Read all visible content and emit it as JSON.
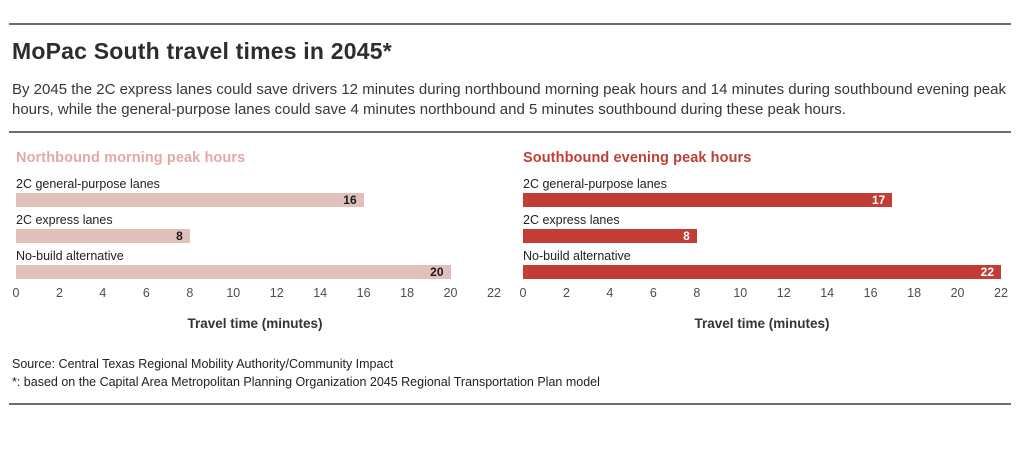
{
  "page": {
    "title": "MoPac South travel times in 2045*",
    "subtitle": "By 2045 the 2C express lanes could save drivers 12 minutes during northbound morning peak hours and 14 minutes during southbound evening peak hours, while the general-purpose lanes could save 4 minutes northbound and 5 minutes southbound during these peak hours.",
    "source_line": "Source: Central Texas Regional Mobility Authority/Community Impact",
    "footnote_line": "*: based on the Capital Area Metropolitan Planning Organization 2045 Regional Transportation Plan model"
  },
  "colors": {
    "northbound_accent": "#e3a9a4",
    "northbound_bar": "#e1bfbb",
    "southbound_accent": "#c13d35",
    "southbound_bar": "#c13d35",
    "rule_gray": "#6e6e6e"
  },
  "chart_data": [
    {
      "type": "bar",
      "orientation": "horizontal",
      "title": "Northbound morning peak hours",
      "title_color": "#e3a9a4",
      "categories": [
        "2C general-purpose lanes",
        "2C express lanes",
        "No-build alternative"
      ],
      "values": [
        16,
        8,
        20
      ],
      "xlabel": "Travel time (minutes)",
      "xlim": [
        0,
        22
      ],
      "xticks": [
        0,
        2,
        4,
        6,
        8,
        10,
        12,
        14,
        16,
        18,
        20,
        22
      ],
      "bar_color": "#e1bfbb",
      "value_label_color": "#1a1a1a",
      "grid": false,
      "legend": false
    },
    {
      "type": "bar",
      "orientation": "horizontal",
      "title": "Southbound evening peak hours",
      "title_color": "#c13d35",
      "categories": [
        "2C general-purpose lanes",
        "2C express lanes",
        "No-build alternative"
      ],
      "values": [
        17,
        8,
        22
      ],
      "xlabel": "Travel time (minutes)",
      "xlim": [
        0,
        22
      ],
      "xticks": [
        0,
        2,
        4,
        6,
        8,
        10,
        12,
        14,
        16,
        18,
        20,
        22
      ],
      "bar_color": "#c13d35",
      "value_label_color": "#ffffff",
      "grid": false,
      "legend": false
    }
  ]
}
